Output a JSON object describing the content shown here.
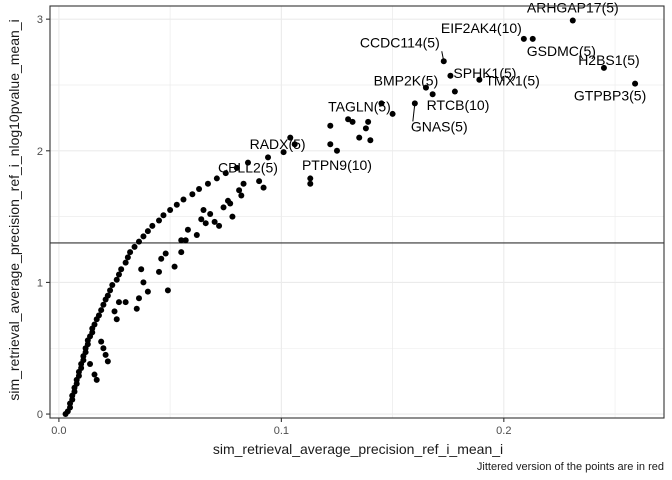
{
  "chart_data": {
    "type": "scatter",
    "xlabel": "sim_retrieval_average_precision_ref_i_mean_i",
    "ylabel": "sim_retrieval_average_precision_ref_i_nlog10pvalue_mean_i",
    "caption": "Jittered version of the points are in red",
    "xlim": [
      -0.004,
      0.272
    ],
    "ylim": [
      -0.03,
      3.1
    ],
    "x_ticks": [
      0.0,
      0.1,
      0.2
    ],
    "x_tick_labels": [
      "0.0",
      "0.1",
      "0.2"
    ],
    "y_ticks": [
      0,
      1,
      2,
      3
    ],
    "y_tick_labels": [
      "0",
      "1",
      "2",
      "3"
    ],
    "hline": 1.3,
    "grid": true,
    "colors": {
      "points": "#000000",
      "grid": "#ebebeb",
      "panel_border": "#333333",
      "hline": "#333333"
    },
    "points": [
      [
        0.003,
        0.0
      ],
      [
        0.004,
        0.02
      ],
      [
        0.005,
        0.05
      ],
      [
        0.005,
        0.08
      ],
      [
        0.006,
        0.11
      ],
      [
        0.006,
        0.14
      ],
      [
        0.007,
        0.17
      ],
      [
        0.007,
        0.2
      ],
      [
        0.008,
        0.23
      ],
      [
        0.008,
        0.26
      ],
      [
        0.009,
        0.29
      ],
      [
        0.009,
        0.32
      ],
      [
        0.01,
        0.35
      ],
      [
        0.01,
        0.38
      ],
      [
        0.011,
        0.41
      ],
      [
        0.011,
        0.44
      ],
      [
        0.012,
        0.47
      ],
      [
        0.012,
        0.5
      ],
      [
        0.013,
        0.53
      ],
      [
        0.013,
        0.56
      ],
      [
        0.014,
        0.59
      ],
      [
        0.015,
        0.62
      ],
      [
        0.015,
        0.65
      ],
      [
        0.016,
        0.68
      ],
      [
        0.017,
        0.72
      ],
      [
        0.018,
        0.75
      ],
      [
        0.019,
        0.79
      ],
      [
        0.02,
        0.83
      ],
      [
        0.021,
        0.87
      ],
      [
        0.022,
        0.9
      ],
      [
        0.023,
        0.94
      ],
      [
        0.024,
        0.98
      ],
      [
        0.026,
        1.02
      ],
      [
        0.027,
        1.06
      ],
      [
        0.028,
        1.1
      ],
      [
        0.03,
        1.15
      ],
      [
        0.031,
        1.19
      ],
      [
        0.032,
        1.23
      ],
      [
        0.034,
        1.27
      ],
      [
        0.036,
        1.31
      ],
      [
        0.038,
        1.35
      ],
      [
        0.04,
        1.39
      ],
      [
        0.042,
        1.43
      ],
      [
        0.045,
        1.47
      ],
      [
        0.047,
        1.51
      ],
      [
        0.05,
        1.55
      ],
      [
        0.053,
        1.59
      ],
      [
        0.056,
        1.63
      ],
      [
        0.06,
        1.67
      ],
      [
        0.063,
        1.71
      ],
      [
        0.067,
        1.75
      ],
      [
        0.071,
        1.79
      ],
      [
        0.075,
        1.83
      ],
      [
        0.08,
        1.87
      ],
      [
        0.085,
        1.91
      ],
      [
        0.019,
        0.55
      ],
      [
        0.02,
        0.5
      ],
      [
        0.021,
        0.45
      ],
      [
        0.022,
        0.4
      ],
      [
        0.016,
        0.3
      ],
      [
        0.014,
        0.38
      ],
      [
        0.017,
        0.26
      ],
      [
        0.025,
        0.78
      ],
      [
        0.026,
        0.72
      ],
      [
        0.027,
        0.85
      ],
      [
        0.035,
        0.8
      ],
      [
        0.036,
        0.88
      ],
      [
        0.038,
        1.0
      ],
      [
        0.04,
        0.93
      ],
      [
        0.045,
        1.08
      ],
      [
        0.046,
        1.18
      ],
      [
        0.049,
        0.94
      ],
      [
        0.048,
        1.22
      ],
      [
        0.055,
        1.23
      ],
      [
        0.057,
        1.32
      ],
      [
        0.058,
        1.4
      ],
      [
        0.062,
        1.36
      ],
      [
        0.064,
        1.48
      ],
      [
        0.065,
        1.55
      ],
      [
        0.068,
        1.52
      ],
      [
        0.07,
        1.46
      ],
      [
        0.072,
        1.43
      ],
      [
        0.074,
        1.57
      ],
      [
        0.077,
        1.6
      ],
      [
        0.078,
        1.5
      ],
      [
        0.081,
        1.7
      ],
      [
        0.082,
        1.66
      ],
      [
        0.083,
        1.75
      ],
      [
        0.09,
        1.77
      ],
      [
        0.092,
        1.72
      ],
      [
        0.094,
        1.95
      ],
      [
        0.101,
        1.99
      ],
      [
        0.104,
        2.1
      ],
      [
        0.106,
        2.05
      ],
      [
        0.113,
        1.79
      ],
      [
        0.113,
        1.75
      ],
      [
        0.122,
        2.05
      ],
      [
        0.122,
        2.19
      ],
      [
        0.125,
        2.0
      ],
      [
        0.13,
        2.24
      ],
      [
        0.132,
        2.22
      ],
      [
        0.135,
        2.1
      ],
      [
        0.138,
        2.17
      ],
      [
        0.139,
        2.22
      ],
      [
        0.14,
        2.08
      ],
      [
        0.145,
        2.36
      ],
      [
        0.15,
        2.28
      ],
      [
        0.16,
        2.36
      ],
      [
        0.165,
        2.48
      ],
      [
        0.168,
        2.43
      ],
      [
        0.173,
        2.68
      ],
      [
        0.176,
        2.57
      ],
      [
        0.178,
        2.45
      ],
      [
        0.189,
        2.54
      ],
      [
        0.209,
        2.85
      ],
      [
        0.213,
        2.85
      ],
      [
        0.231,
        2.99
      ],
      [
        0.245,
        2.63
      ],
      [
        0.259,
        2.51
      ],
      [
        0.03,
        0.85
      ],
      [
        0.037,
        1.1
      ],
      [
        0.055,
        1.32
      ],
      [
        0.052,
        1.12
      ],
      [
        0.066,
        1.45
      ],
      [
        0.076,
        1.62
      ]
    ],
    "annotations": [
      {
        "text": "ARHGAP17(5)",
        "x": 0.231,
        "y": 2.99
      },
      {
        "text": "EIF2AK4(10)",
        "x": 0.209,
        "y": 2.85
      },
      {
        "text": "GSDMC(5)",
        "x": 0.213,
        "y": 2.85
      },
      {
        "text": "H2BS1(5)",
        "x": 0.245,
        "y": 2.63
      },
      {
        "text": "GTPBP3(5)",
        "x": 0.259,
        "y": 2.51
      },
      {
        "text": "CCDC114(5)",
        "x": 0.173,
        "y": 2.68
      },
      {
        "text": "SPHK1(5)",
        "x": 0.176,
        "y": 2.57
      },
      {
        "text": "TMX1(5)",
        "x": 0.189,
        "y": 2.54
      },
      {
        "text": "BMP2K(5)",
        "x": 0.165,
        "y": 2.48
      },
      {
        "text": "RTCB(10)",
        "x": 0.168,
        "y": 2.43
      },
      {
        "text": "TAGLN(5)",
        "x": 0.145,
        "y": 2.36
      },
      {
        "text": "GNAS(5)",
        "x": 0.16,
        "y": 2.36
      },
      {
        "text": "RADX(5)",
        "x": 0.101,
        "y": 1.99
      },
      {
        "text": "PTPN9(10)",
        "x": 0.125,
        "y": 2.0
      },
      {
        "text": "CBLL2(5)",
        "x": 0.085,
        "y": 1.91
      }
    ]
  }
}
